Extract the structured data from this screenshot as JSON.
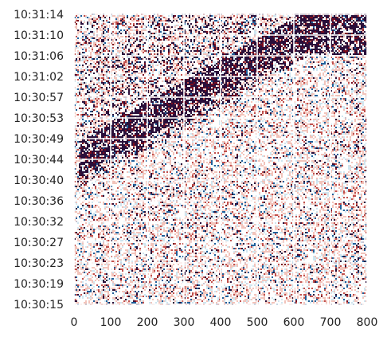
{
  "chart_data": {
    "type": "heatmap",
    "title": "",
    "xlabel": "",
    "ylabel": "",
    "xlim": [
      0,
      800
    ],
    "x_ticks": [
      0,
      100,
      200,
      300,
      400,
      500,
      600,
      700,
      800
    ],
    "y_ticks_top_to_bottom": [
      "10:31:14",
      "10:31:10",
      "10:31:06",
      "10:31:02",
      "10:30:57",
      "10:30:53",
      "10:30:49",
      "10:30:44",
      "10:30:40",
      "10:30:36",
      "10:30:32",
      "10:30:27",
      "10:30:23",
      "10:30:19",
      "10:30:15"
    ],
    "ylim": [
      "10:30:15",
      "10:31:14"
    ],
    "grid": true,
    "legend": "none",
    "colormap": "diverging red-blue (dark navy high, white mid, red/blue extremes)",
    "colors": {
      "high": "#2a0f3a",
      "dark_red": "#7a0c1e",
      "red": "#c0504d",
      "light_red": "#f2c4bb",
      "light_blue": "#cfe6f0",
      "blue": "#1f5f9a",
      "background": "#ffffff"
    },
    "dark_band_description": "diagonal high-correlation band rising from x≈50 at 10:30:40 to x≈750 at 10:31:14"
  }
}
